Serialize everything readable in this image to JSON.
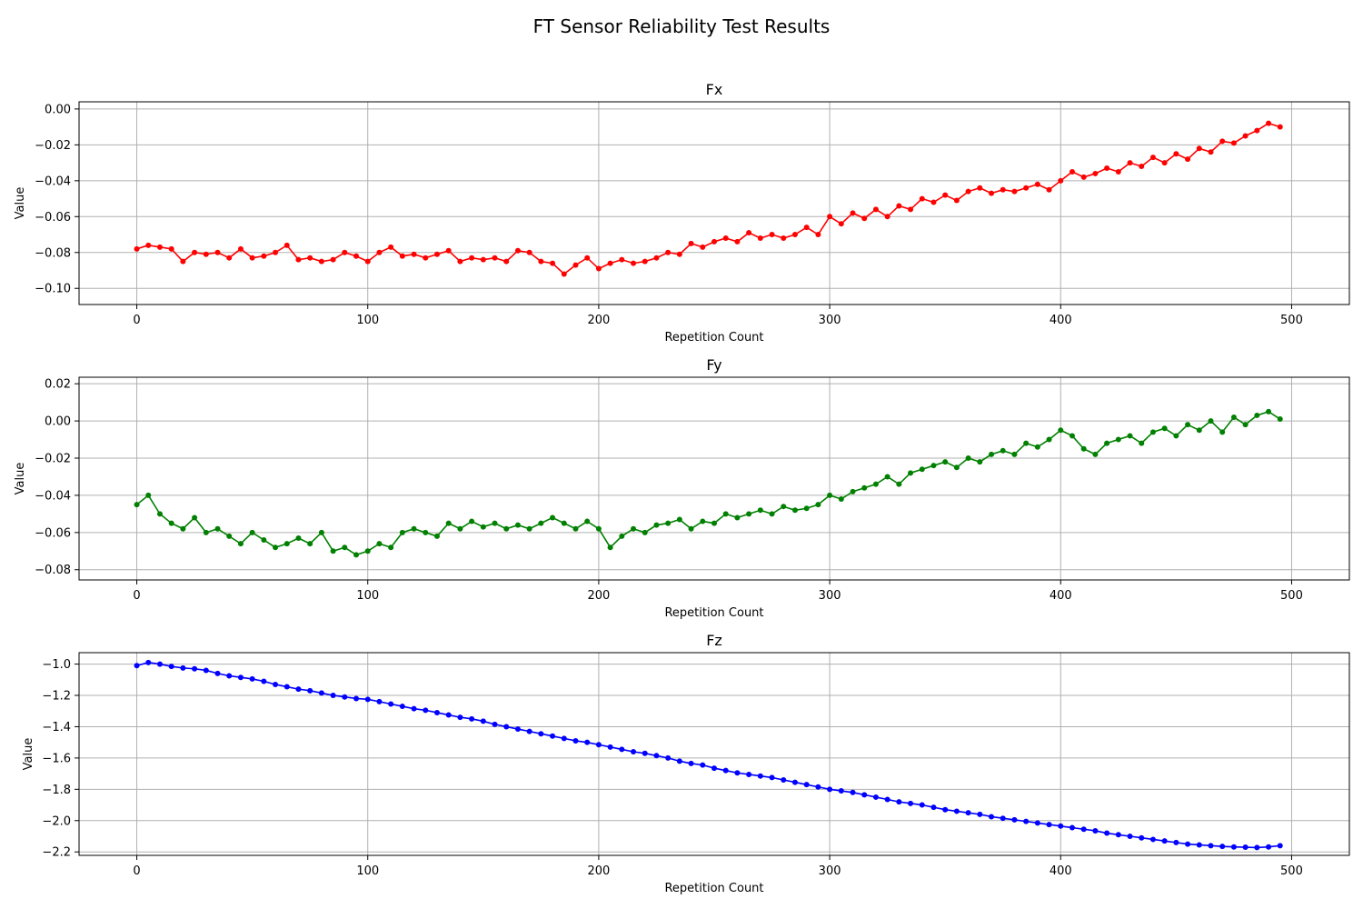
{
  "chart_data": {
    "type": "line",
    "title": "FT Sensor Reliability Test Results",
    "panels": [
      {
        "title": "Fx",
        "xlabel": "Repetition Count",
        "ylabel": "Value",
        "xlim": [
          -25,
          525
        ],
        "ylim": [
          -0.109,
          0.004
        ],
        "xticks": [
          0,
          100,
          200,
          300,
          400,
          500
        ],
        "xtick_labels": [
          "0",
          "100",
          "200",
          "300",
          "400",
          "500"
        ],
        "yticks": [
          0.0,
          -0.02,
          -0.04,
          -0.06,
          -0.08,
          -0.1
        ],
        "ytick_labels": [
          "0.00",
          "−0.02",
          "−0.04",
          "−0.06",
          "−0.08",
          "−0.10"
        ],
        "grid": true,
        "color": "#ff0000",
        "marker": "circle",
        "series": {
          "x_start": 0,
          "x_step": 5,
          "values": [
            -0.078,
            -0.076,
            -0.077,
            -0.078,
            -0.085,
            -0.08,
            -0.081,
            -0.08,
            -0.083,
            -0.078,
            -0.083,
            -0.082,
            -0.08,
            -0.076,
            -0.084,
            -0.083,
            -0.085,
            -0.084,
            -0.08,
            -0.082,
            -0.085,
            -0.08,
            -0.077,
            -0.082,
            -0.081,
            -0.083,
            -0.081,
            -0.079,
            -0.085,
            -0.083,
            -0.084,
            -0.083,
            -0.085,
            -0.079,
            -0.08,
            -0.085,
            -0.086,
            -0.092,
            -0.087,
            -0.083,
            -0.089,
            -0.086,
            -0.084,
            -0.086,
            -0.085,
            -0.083,
            -0.08,
            -0.081,
            -0.075,
            -0.077,
            -0.074,
            -0.072,
            -0.074,
            -0.069,
            -0.072,
            -0.07,
            -0.072,
            -0.07,
            -0.066,
            -0.07,
            -0.06,
            -0.064,
            -0.058,
            -0.061,
            -0.056,
            -0.06,
            -0.054,
            -0.056,
            -0.05,
            -0.052,
            -0.048,
            -0.051,
            -0.046,
            -0.044,
            -0.047,
            -0.045,
            -0.046,
            -0.044,
            -0.042,
            -0.045,
            -0.04,
            -0.035,
            -0.038,
            -0.036,
            -0.033,
            -0.035,
            -0.03,
            -0.032,
            -0.027,
            -0.03,
            -0.025,
            -0.028,
            -0.022,
            -0.024,
            -0.018,
            -0.019,
            -0.015,
            -0.012,
            -0.008,
            -0.01
          ]
        }
      },
      {
        "title": "Fy",
        "xlabel": "Repetition Count",
        "ylabel": "Value",
        "xlim": [
          -25,
          525
        ],
        "ylim": [
          -0.0855,
          0.0235
        ],
        "xticks": [
          0,
          100,
          200,
          300,
          400,
          500
        ],
        "xtick_labels": [
          "0",
          "100",
          "200",
          "300",
          "400",
          "500"
        ],
        "yticks": [
          0.02,
          0.0,
          -0.02,
          -0.04,
          -0.06,
          -0.08
        ],
        "ytick_labels": [
          "0.02",
          "0.00",
          "−0.02",
          "−0.04",
          "−0.06",
          "−0.08"
        ],
        "grid": true,
        "color": "#008000",
        "marker": "circle",
        "series": {
          "x_start": 0,
          "x_step": 5,
          "values": [
            -0.045,
            -0.04,
            -0.05,
            -0.055,
            -0.058,
            -0.052,
            -0.06,
            -0.058,
            -0.062,
            -0.066,
            -0.06,
            -0.064,
            -0.068,
            -0.066,
            -0.063,
            -0.066,
            -0.06,
            -0.07,
            -0.068,
            -0.072,
            -0.07,
            -0.066,
            -0.068,
            -0.06,
            -0.058,
            -0.06,
            -0.062,
            -0.055,
            -0.058,
            -0.054,
            -0.057,
            -0.055,
            -0.058,
            -0.056,
            -0.058,
            -0.055,
            -0.052,
            -0.055,
            -0.058,
            -0.054,
            -0.058,
            -0.068,
            -0.062,
            -0.058,
            -0.06,
            -0.056,
            -0.055,
            -0.053,
            -0.058,
            -0.054,
            -0.055,
            -0.05,
            -0.052,
            -0.05,
            -0.048,
            -0.05,
            -0.046,
            -0.048,
            -0.047,
            -0.045,
            -0.04,
            -0.042,
            -0.038,
            -0.036,
            -0.034,
            -0.03,
            -0.034,
            -0.028,
            -0.026,
            -0.024,
            -0.022,
            -0.025,
            -0.02,
            -0.022,
            -0.018,
            -0.016,
            -0.018,
            -0.012,
            -0.014,
            -0.01,
            -0.005,
            -0.008,
            -0.015,
            -0.018,
            -0.012,
            -0.01,
            -0.008,
            -0.012,
            -0.006,
            -0.004,
            -0.008,
            -0.002,
            -0.005,
            0.0,
            -0.006,
            0.002,
            -0.002,
            0.003,
            0.005,
            0.001
          ]
        }
      },
      {
        "title": "Fz",
        "xlabel": "Repetition Count",
        "ylabel": "Value",
        "xlim": [
          -25,
          525
        ],
        "ylim": [
          -2.222,
          -0.927
        ],
        "xticks": [
          0,
          100,
          200,
          300,
          400,
          500
        ],
        "xtick_labels": [
          "0",
          "100",
          "200",
          "300",
          "400",
          "500"
        ],
        "yticks": [
          -1.0,
          -1.2,
          -1.4,
          -1.6,
          -1.8,
          -2.0,
          -2.2
        ],
        "ytick_labels": [
          "−1.0",
          "−1.2",
          "−1.4",
          "−1.6",
          "−1.8",
          "−2.0",
          "−2.2"
        ],
        "grid": true,
        "color": "#0000ff",
        "marker": "circle",
        "series": {
          "x_start": 0,
          "x_step": 5,
          "values": [
            -1.01,
            -0.99,
            -1.0,
            -1.015,
            -1.025,
            -1.03,
            -1.04,
            -1.06,
            -1.075,
            -1.085,
            -1.095,
            -1.11,
            -1.13,
            -1.145,
            -1.16,
            -1.17,
            -1.185,
            -1.2,
            -1.21,
            -1.22,
            -1.225,
            -1.24,
            -1.255,
            -1.27,
            -1.285,
            -1.295,
            -1.31,
            -1.325,
            -1.34,
            -1.35,
            -1.365,
            -1.385,
            -1.4,
            -1.415,
            -1.43,
            -1.445,
            -1.46,
            -1.475,
            -1.49,
            -1.5,
            -1.515,
            -1.53,
            -1.545,
            -1.56,
            -1.57,
            -1.585,
            -1.6,
            -1.62,
            -1.635,
            -1.645,
            -1.665,
            -1.68,
            -1.695,
            -1.705,
            -1.715,
            -1.725,
            -1.74,
            -1.755,
            -1.77,
            -1.785,
            -1.8,
            -1.81,
            -1.82,
            -1.835,
            -1.85,
            -1.865,
            -1.88,
            -1.89,
            -1.9,
            -1.915,
            -1.93,
            -1.94,
            -1.95,
            -1.96,
            -1.975,
            -1.985,
            -1.995,
            -2.005,
            -2.015,
            -2.025,
            -2.035,
            -2.045,
            -2.055,
            -2.065,
            -2.08,
            -2.09,
            -2.1,
            -2.11,
            -2.12,
            -2.13,
            -2.14,
            -2.15,
            -2.155,
            -2.16,
            -2.165,
            -2.168,
            -2.17,
            -2.172,
            -2.168,
            -2.16
          ]
        }
      }
    ]
  }
}
